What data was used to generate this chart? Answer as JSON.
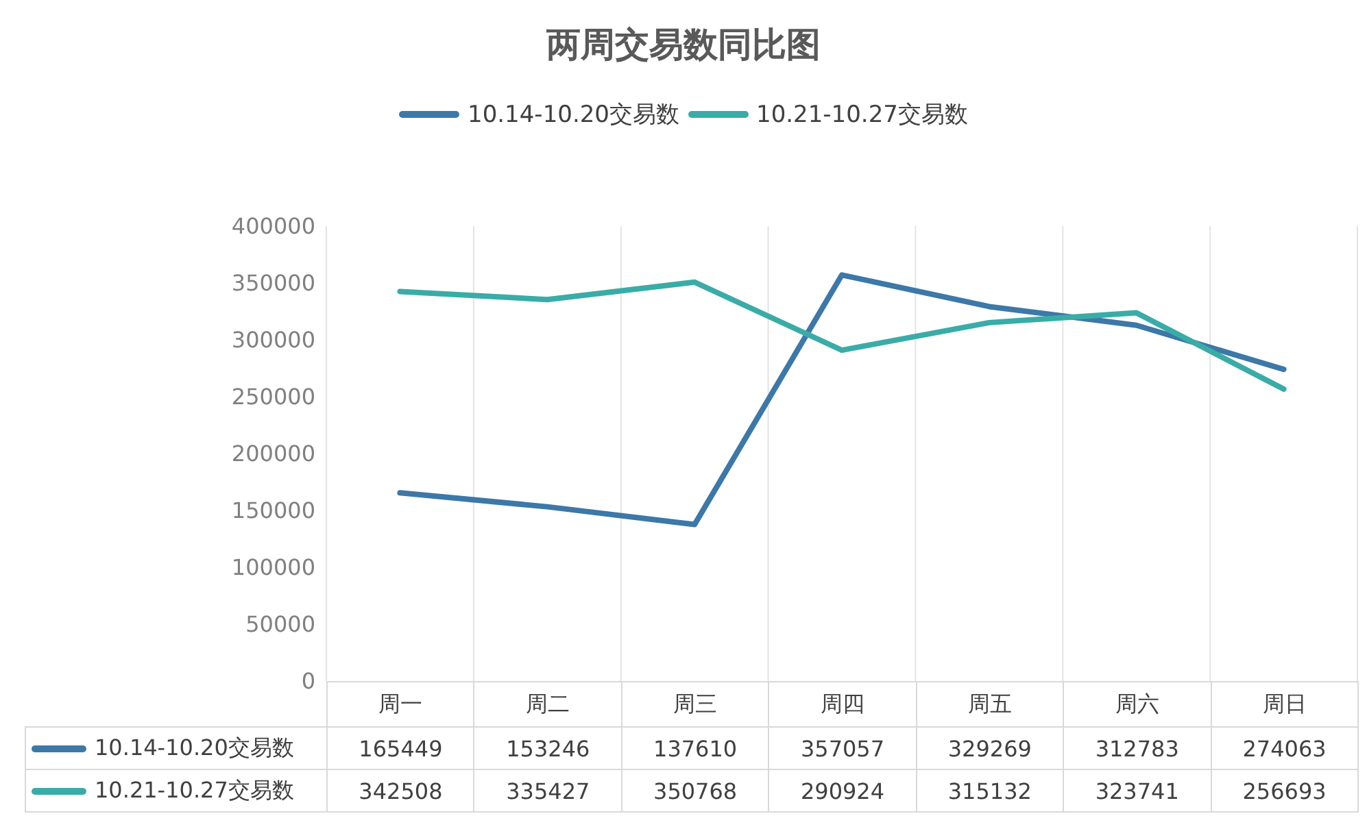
{
  "chart_data": {
    "type": "line",
    "title": "两周交易数同比图",
    "categories": [
      "周一",
      "周二",
      "周三",
      "周四",
      "周五",
      "周六",
      "周日"
    ],
    "series": [
      {
        "name": "10.14-10.20交易数",
        "color": "#3c78a8",
        "values": [
          165449,
          153246,
          137610,
          357057,
          329269,
          312783,
          274063
        ]
      },
      {
        "name": "10.21-10.27交易数",
        "color": "#3aaca7",
        "values": [
          342508,
          335427,
          350768,
          290924,
          315132,
          323741,
          256693
        ]
      }
    ],
    "ylim": [
      0,
      400000
    ],
    "yticks": [
      0,
      50000,
      100000,
      150000,
      200000,
      250000,
      300000,
      350000,
      400000
    ],
    "grid": "x",
    "legend": "top",
    "data_labels": true,
    "marker": "none",
    "line_style": "solid"
  }
}
